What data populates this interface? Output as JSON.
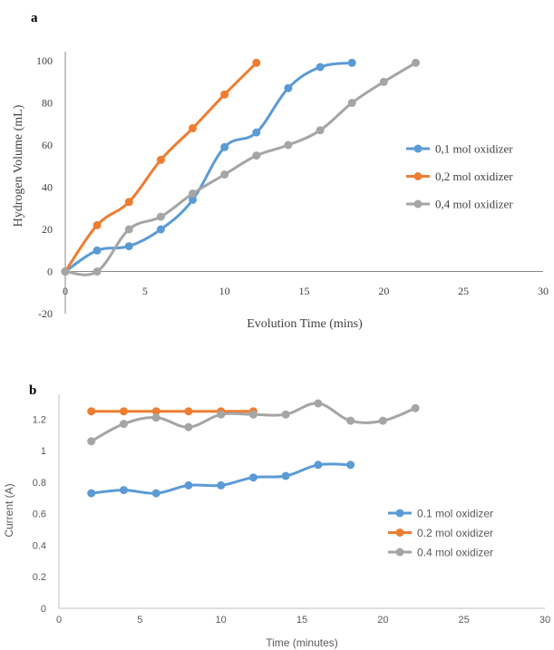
{
  "chart_data": [
    {
      "panel": "a",
      "type": "line",
      "title": "",
      "xlabel": "Evolution Time (mins)",
      "ylabel": "Hydrogen Volume (mL)",
      "xlim": [
        0,
        30
      ],
      "ylim": [
        -20,
        100
      ],
      "xticks": [
        "0",
        "5",
        "10",
        "15",
        "20",
        "25",
        "30"
      ],
      "yticks": [
        "-20",
        "0",
        "20",
        "40",
        "60",
        "80",
        "100"
      ],
      "grid": false,
      "legend": "right",
      "series": [
        {
          "name": "0,1 mol oxidizer",
          "color": "#5B9BD5",
          "x": [
            0,
            2,
            4,
            6,
            8,
            10,
            12,
            14,
            16,
            18
          ],
          "y": [
            0,
            10,
            12,
            20,
            34,
            59,
            66,
            87,
            97,
            99
          ]
        },
        {
          "name": "0,2 mol oxidizer",
          "color": "#ED7D31",
          "x": [
            0,
            2,
            4,
            6,
            8,
            10,
            12
          ],
          "y": [
            0,
            22,
            33,
            53,
            68,
            84,
            99
          ]
        },
        {
          "name": "0,4 mol oxidizer",
          "color": "#A5A5A5",
          "x": [
            0,
            2,
            4,
            6,
            8,
            10,
            12,
            14,
            16,
            18,
            20,
            22
          ],
          "y": [
            0,
            0,
            20,
            26,
            37,
            46,
            55,
            60,
            67,
            80,
            90,
            99
          ]
        }
      ]
    },
    {
      "panel": "b",
      "type": "line",
      "title": "",
      "xlabel": "Time (minutes)",
      "ylabel": "Current (A)",
      "xlim": [
        0,
        30
      ],
      "ylim": [
        0,
        1.3
      ],
      "xticks": [
        "0",
        "5",
        "10",
        "15",
        "20",
        "25",
        "30"
      ],
      "yticks": [
        "0",
        "0.2",
        "0.4",
        "0.6",
        "0.8",
        "1",
        "1.2"
      ],
      "grid": false,
      "legend": "right",
      "series": [
        {
          "name": "0.1 mol oxidizer",
          "color": "#5B9BD5",
          "x": [
            2,
            4,
            6,
            8,
            10,
            12,
            14,
            16,
            18
          ],
          "y": [
            0.73,
            0.75,
            0.73,
            0.78,
            0.78,
            0.83,
            0.84,
            0.91,
            0.91
          ]
        },
        {
          "name": "0.2 mol oxidizer",
          "color": "#ED7D31",
          "x": [
            2,
            4,
            6,
            8,
            10,
            12
          ],
          "y": [
            1.25,
            1.25,
            1.25,
            1.25,
            1.25,
            1.25
          ]
        },
        {
          "name": "0.4 mol oxidizer",
          "color": "#A5A5A5",
          "x": [
            2,
            4,
            6,
            8,
            10,
            12,
            14,
            16,
            18,
            20,
            22
          ],
          "y": [
            1.06,
            1.17,
            1.21,
            1.15,
            1.23,
            1.23,
            1.23,
            1.3,
            1.19,
            1.19,
            1.27
          ]
        }
      ]
    }
  ]
}
